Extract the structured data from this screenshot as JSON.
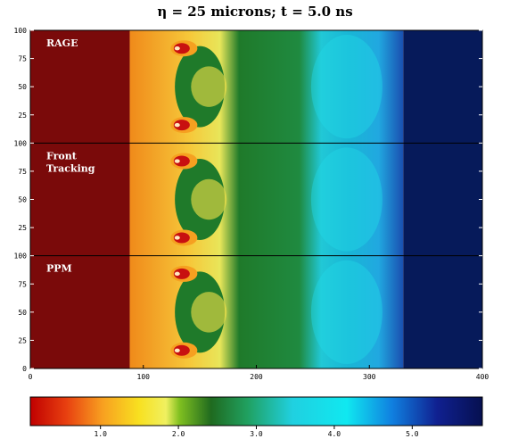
{
  "title": "η = 25  microns;  t = 5.0 ns",
  "panels": [
    {
      "label_lines": [
        "RAGE"
      ]
    },
    {
      "label_lines": [
        "Front",
        "Tracking"
      ]
    },
    {
      "label_lines": [
        "PPM"
      ]
    }
  ],
  "axes": {
    "y_ticks": [
      "100",
      "75",
      "50",
      "25",
      "0"
    ],
    "x_ticks": [
      "0",
      "100",
      "200",
      "300",
      "400"
    ],
    "x_range": [
      0,
      400
    ],
    "y_range": [
      0,
      100
    ]
  },
  "colorbar": {
    "ticks": [
      "1.0",
      "2.0",
      "3.0",
      "4.0",
      "5.0"
    ],
    "range": [
      0.1,
      5.9
    ]
  },
  "colors": {
    "dense": "#7a0a0a",
    "orange": "#f08a1a",
    "yellow": "#f6e24a",
    "green": "#1f7a2a",
    "cyan": "#21d6e6",
    "blue": "#0a2a7a",
    "navy": "#061a5a"
  }
}
